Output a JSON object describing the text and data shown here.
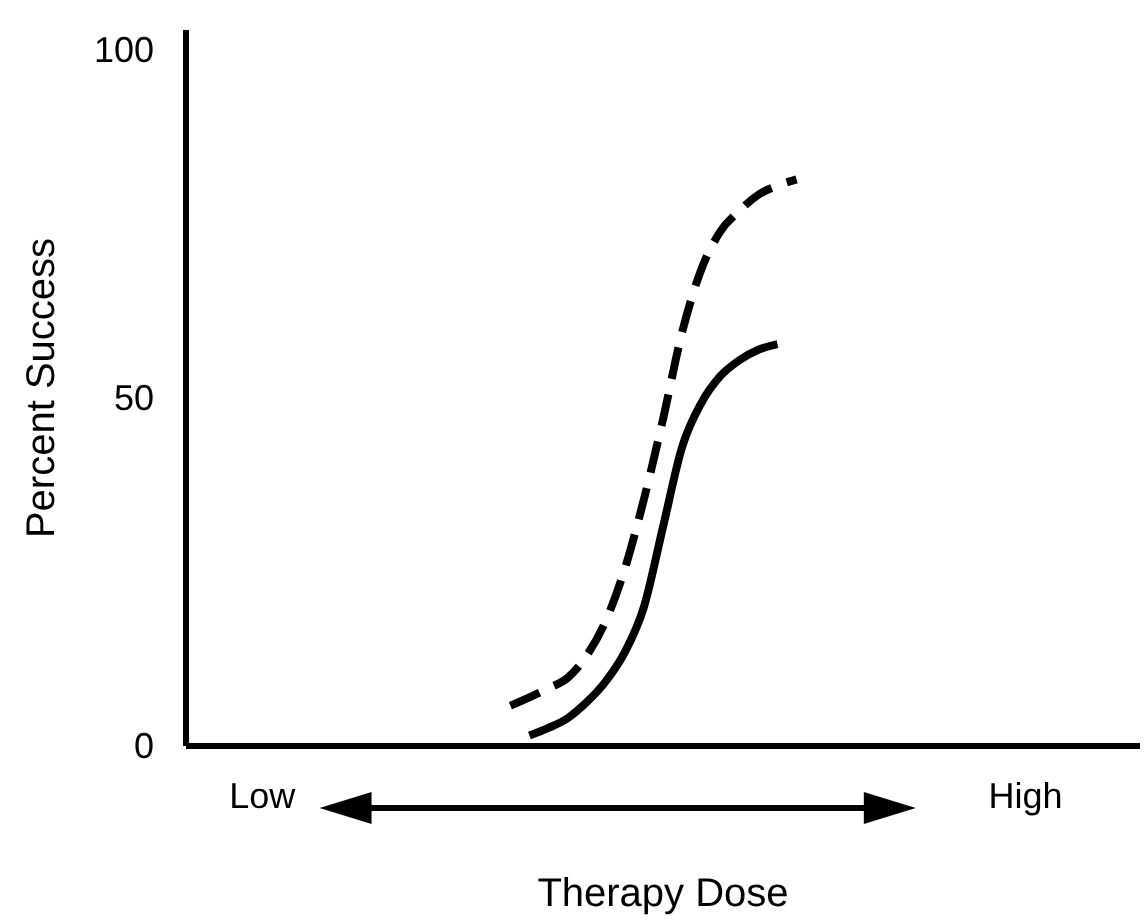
{
  "chart_data": {
    "type": "line",
    "xlabel": "Therapy Dose",
    "ylabel": "Percent Success",
    "categories": [
      null,
      null,
      null,
      null,
      "Low",
      null,
      null,
      null,
      null,
      null,
      null,
      null,
      null,
      null,
      null,
      null,
      null,
      null,
      null,
      null,
      null,
      null,
      null,
      null,
      null,
      null,
      null,
      null,
      null,
      null,
      null,
      null,
      null,
      null,
      null,
      null,
      null,
      null,
      null,
      null,
      null,
      null,
      null,
      null,
      "High",
      null,
      null,
      null,
      null,
      null,
      null
    ],
    "ylim": [
      0,
      103
    ],
    "yticks": [
      0,
      50,
      100
    ],
    "grid": false,
    "marker": "none",
    "series": [
      {
        "color": "#000000",
        "line_style": "dashed",
        "values": [
          null,
          null,
          null,
          null,
          null,
          null,
          null,
          null,
          null,
          null,
          null,
          null,
          null,
          null,
          null,
          null,
          null,
          5.8,
          7,
          8.3,
          9.8,
          13,
          18,
          25.5,
          35.5,
          47,
          59.5,
          68.5,
          74,
          77,
          79.3,
          80.6,
          81.5,
          null,
          null,
          null,
          null,
          null,
          null,
          null,
          null,
          null,
          null,
          null,
          null,
          null,
          null,
          null,
          null,
          null,
          null
        ]
      },
      {
        "color": "#000000",
        "line_style": "solid",
        "values": [
          null,
          null,
          null,
          null,
          null,
          null,
          null,
          null,
          null,
          null,
          null,
          null,
          null,
          null,
          null,
          null,
          null,
          null,
          1.5,
          2.6,
          4,
          6.3,
          9.3,
          13.5,
          20,
          31.5,
          43,
          49.3,
          53.2,
          55.5,
          57,
          57.8,
          null,
          null,
          null,
          null,
          null,
          null,
          null,
          null,
          null,
          null,
          null,
          null,
          null,
          null,
          null,
          null,
          null,
          null,
          null
        ]
      }
    ]
  }
}
